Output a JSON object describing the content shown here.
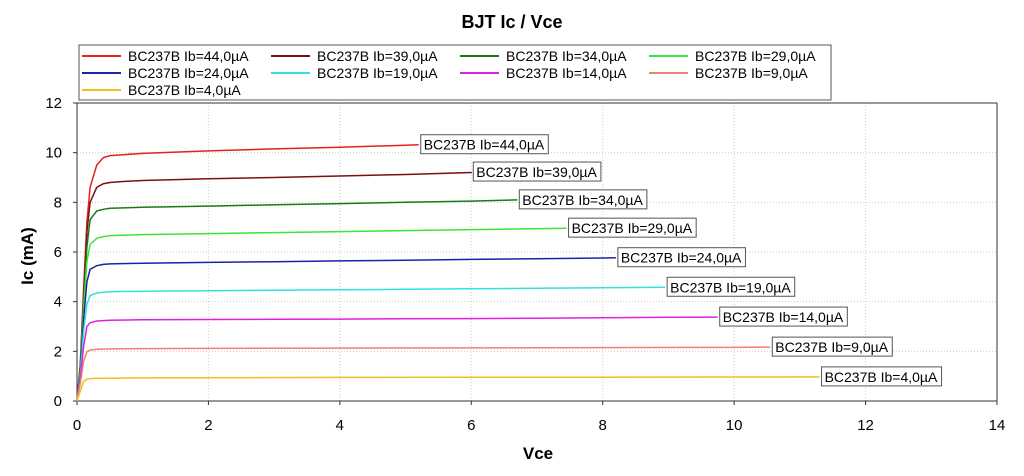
{
  "chart_data": {
    "type": "line",
    "title": "BJT Ic / Vce",
    "xlabel": "Vce",
    "ylabel": "Ic (mA)",
    "xlim": [
      0,
      14
    ],
    "ylim": [
      0,
      12
    ],
    "xticks": [
      0,
      2,
      4,
      6,
      8,
      10,
      12,
      14
    ],
    "yticks": [
      0,
      2,
      4,
      6,
      8,
      10,
      12
    ],
    "grid": true,
    "legend_position": "top-left",
    "series": [
      {
        "name": "BC237B Ib=44,0µA",
        "color": "#e8201b",
        "x": [
          0,
          0.05,
          0.1,
          0.15,
          0.2,
          0.3,
          0.4,
          0.5,
          0.7,
          1,
          2,
          3,
          4,
          5,
          5.2
        ],
        "y": [
          0,
          1.5,
          4.5,
          7.2,
          8.6,
          9.5,
          9.8,
          9.88,
          9.92,
          9.97,
          10.07,
          10.15,
          10.22,
          10.3,
          10.32
        ]
      },
      {
        "name": "BC237B Ib=39,0µA",
        "color": "#7a1010",
        "x": [
          0,
          0.05,
          0.1,
          0.15,
          0.2,
          0.3,
          0.4,
          0.5,
          0.7,
          1,
          2,
          3,
          4,
          5,
          6,
          6.0
        ],
        "y": [
          0,
          1.4,
          4.2,
          6.8,
          8.0,
          8.6,
          8.75,
          8.8,
          8.84,
          8.88,
          8.95,
          9.0,
          9.06,
          9.12,
          9.2,
          9.22
        ]
      },
      {
        "name": "BC237B Ib=34,0µA",
        "color": "#1b7a14",
        "x": [
          0,
          0.05,
          0.1,
          0.15,
          0.2,
          0.3,
          0.4,
          0.5,
          1,
          2,
          3,
          4,
          5,
          6,
          6.7
        ],
        "y": [
          0,
          1.3,
          4.0,
          6.2,
          7.3,
          7.65,
          7.72,
          7.76,
          7.8,
          7.85,
          7.9,
          7.95,
          8.0,
          8.05,
          8.1
        ]
      },
      {
        "name": "BC237B Ib=29,0µA",
        "color": "#3fe43a",
        "x": [
          0,
          0.05,
          0.1,
          0.15,
          0.2,
          0.3,
          0.4,
          0.5,
          1,
          2,
          3,
          4,
          5,
          6,
          7,
          7.45
        ],
        "y": [
          0,
          1.2,
          3.7,
          5.6,
          6.3,
          6.55,
          6.62,
          6.66,
          6.7,
          6.74,
          6.78,
          6.82,
          6.86,
          6.9,
          6.94,
          6.96
        ]
      },
      {
        "name": "BC237B Ib=24,0µA",
        "color": "#1a22a8",
        "x": [
          0,
          0.05,
          0.1,
          0.15,
          0.2,
          0.3,
          0.4,
          0.5,
          1,
          2,
          3,
          4,
          5,
          6,
          7,
          8,
          8.2
        ],
        "y": [
          0,
          1.1,
          3.3,
          4.8,
          5.3,
          5.45,
          5.5,
          5.52,
          5.55,
          5.58,
          5.61,
          5.64,
          5.67,
          5.7,
          5.73,
          5.76,
          5.77
        ]
      },
      {
        "name": "BC237B Ib=19,0µA",
        "color": "#33e0e0",
        "x": [
          0,
          0.05,
          0.1,
          0.15,
          0.2,
          0.3,
          0.4,
          0.5,
          1,
          2,
          3,
          4,
          5,
          6,
          7,
          8,
          8.95
        ],
        "y": [
          0,
          1.0,
          2.8,
          3.9,
          4.25,
          4.35,
          4.38,
          4.4,
          4.42,
          4.44,
          4.46,
          4.48,
          4.5,
          4.52,
          4.54,
          4.56,
          4.58
        ]
      },
      {
        "name": "BC237B Ib=14,0µA",
        "color": "#e020e0",
        "x": [
          0,
          0.05,
          0.1,
          0.15,
          0.2,
          0.3,
          0.5,
          1,
          2,
          3,
          4,
          5,
          6,
          7,
          8,
          9,
          9.75
        ],
        "y": [
          0,
          0.9,
          2.2,
          3.0,
          3.15,
          3.22,
          3.25,
          3.27,
          3.28,
          3.29,
          3.3,
          3.31,
          3.32,
          3.33,
          3.35,
          3.37,
          3.38
        ]
      },
      {
        "name": "BC237B Ib=9,0µA",
        "color": "#f08070",
        "x": [
          0,
          0.05,
          0.1,
          0.15,
          0.2,
          0.3,
          0.5,
          1,
          2,
          4,
          6,
          8,
          10,
          10.55
        ],
        "y": [
          0,
          0.7,
          1.6,
          1.98,
          2.05,
          2.08,
          2.1,
          2.11,
          2.12,
          2.13,
          2.14,
          2.15,
          2.16,
          2.17
        ]
      },
      {
        "name": "BC237B Ib=4,0µA",
        "color": "#f0c020",
        "x": [
          0,
          0.05,
          0.1,
          0.15,
          0.2,
          0.3,
          0.5,
          1,
          2,
          4,
          6,
          8,
          10,
          11.3
        ],
        "y": [
          0,
          0.4,
          0.78,
          0.88,
          0.9,
          0.91,
          0.92,
          0.93,
          0.94,
          0.95,
          0.955,
          0.96,
          0.965,
          0.97
        ]
      }
    ]
  }
}
